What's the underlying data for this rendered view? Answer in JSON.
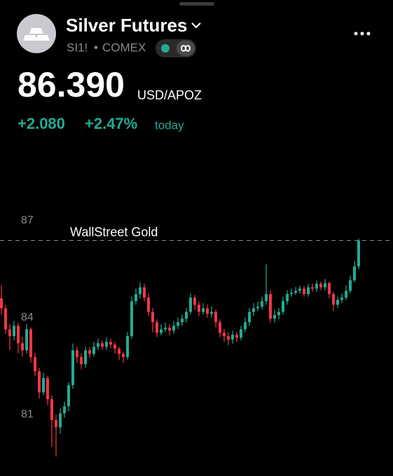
{
  "header": {
    "title": "Silver Futures",
    "symbol": "SI1!",
    "exchange": "COMEX",
    "price": "86.390",
    "currency": "USD/APOZ",
    "change": "+2.080",
    "change_percent": "+2.47%",
    "period": "today"
  },
  "chart_data": {
    "type": "candlestick",
    "ylim": [
      79.1,
      87.55
    ],
    "yticks": [
      81,
      84,
      87
    ],
    "up_color": "#22ab94",
    "down_color": "#f23645",
    "reference_line": {
      "value": 86.39,
      "label": "WallStreet Gold"
    },
    "open": [
      84.6,
      84.29,
      83.64,
      83.43,
      83.75,
      83.21,
      82.99,
      83.64,
      82.78,
      82.34,
      81.69,
      82.13,
      81.48,
      80.83,
      80.61,
      81.04,
      81.26,
      81.91,
      82.99,
      82.78,
      82.56,
      82.99,
      82.88,
      83.1,
      83.21,
      83.1,
      83.25,
      83.17,
      83.04,
      82.88,
      82.78,
      83.43,
      84.51,
      84.73,
      84.94,
      84.62,
      84.18,
      83.86,
      83.53,
      83.64,
      83.69,
      83.6,
      83.75,
      83.86,
      83.97,
      84.18,
      84.62,
      84.4,
      84.18,
      84.29,
      84.12,
      84.18,
      83.86,
      83.53,
      83.43,
      83.32,
      83.47,
      83.38,
      83.64,
      83.86,
      84.18,
      84.29,
      84.34,
      84.51,
      84.73,
      83.97,
      84.08,
      84.18,
      84.51,
      84.73,
      84.77,
      84.83,
      84.9,
      84.73,
      84.94,
      84.9,
      85.05,
      84.94,
      85.07,
      84.73,
      84.4,
      84.55,
      84.62,
      84.83,
      85.16,
      85.59
    ],
    "high": [
      85.0,
      84.4,
      83.8,
      83.9,
      83.85,
      83.4,
      83.8,
      83.7,
      82.9,
      82.45,
      82.3,
      82.2,
      81.6,
      81.0,
      81.2,
      81.4,
      82.0,
      83.2,
      83.1,
      82.9,
      83.1,
      83.1,
      83.25,
      83.35,
      83.3,
      83.4,
      83.35,
      83.25,
      83.1,
      82.95,
      83.55,
      84.65,
      84.9,
      85.1,
      85.05,
      84.75,
      84.3,
      83.95,
      83.8,
      83.85,
      83.8,
      83.9,
      84.0,
      84.1,
      84.3,
      84.75,
      84.7,
      84.5,
      84.45,
      84.4,
      84.35,
      84.25,
      83.95,
      83.65,
      83.55,
      83.6,
      83.55,
      83.75,
      84.0,
      84.3,
      84.45,
      84.5,
      84.65,
      85.65,
      84.85,
      84.25,
      84.3,
      84.65,
      84.85,
      84.9,
      84.95,
      85.0,
      84.98,
      85.05,
      85.05,
      85.15,
      85.12,
      85.2,
      85.12,
      84.8,
      84.65,
      84.75,
      85.0,
      85.3,
      85.75,
      86.45
    ],
    "low": [
      84.1,
      83.5,
      83.0,
      83.3,
      82.9,
      82.8,
      82.9,
      82.6,
      82.2,
      81.5,
      81.6,
      81.3,
      80.0,
      79.7,
      80.4,
      80.9,
      81.1,
      81.8,
      82.6,
      82.4,
      82.45,
      82.75,
      82.8,
      83.0,
      83.0,
      83.0,
      83.05,
      82.9,
      82.7,
      82.6,
      82.7,
      83.35,
      84.4,
      84.6,
      84.5,
      84.05,
      83.55,
      83.4,
      83.45,
      83.55,
      83.45,
      83.5,
      83.65,
      83.75,
      83.85,
      84.1,
      84.25,
      84.05,
      84.1,
      84.0,
      84.0,
      83.7,
      83.4,
      83.25,
      83.15,
      83.2,
      83.25,
      83.3,
      83.55,
      83.75,
      84.05,
      84.2,
      84.25,
      84.4,
      83.85,
      83.85,
      83.95,
      84.1,
      84.4,
      84.65,
      84.7,
      84.75,
      84.65,
      84.65,
      84.8,
      84.8,
      84.85,
      84.85,
      84.6,
      84.2,
      84.3,
      84.45,
      84.55,
      84.75,
      85.1,
      85.5
    ],
    "close": [
      84.29,
      83.64,
      83.43,
      83.75,
      83.21,
      82.99,
      83.64,
      82.78,
      82.34,
      81.69,
      82.13,
      81.48,
      80.83,
      80.61,
      81.04,
      81.26,
      81.91,
      82.99,
      82.78,
      82.56,
      82.99,
      82.88,
      83.1,
      83.21,
      83.1,
      83.25,
      83.17,
      83.04,
      82.88,
      82.78,
      83.43,
      84.51,
      84.73,
      84.94,
      84.62,
      84.18,
      83.86,
      83.53,
      83.64,
      83.69,
      83.6,
      83.75,
      83.86,
      83.97,
      84.18,
      84.62,
      84.4,
      84.18,
      84.29,
      84.12,
      84.18,
      83.86,
      83.53,
      83.43,
      83.32,
      83.47,
      83.38,
      83.64,
      83.86,
      84.18,
      84.29,
      84.34,
      84.51,
      84.73,
      83.97,
      84.08,
      84.18,
      84.51,
      84.73,
      84.77,
      84.83,
      84.9,
      84.73,
      84.94,
      84.9,
      85.05,
      84.94,
      85.07,
      84.73,
      84.4,
      84.55,
      84.62,
      84.83,
      85.16,
      85.59,
      86.39
    ]
  }
}
